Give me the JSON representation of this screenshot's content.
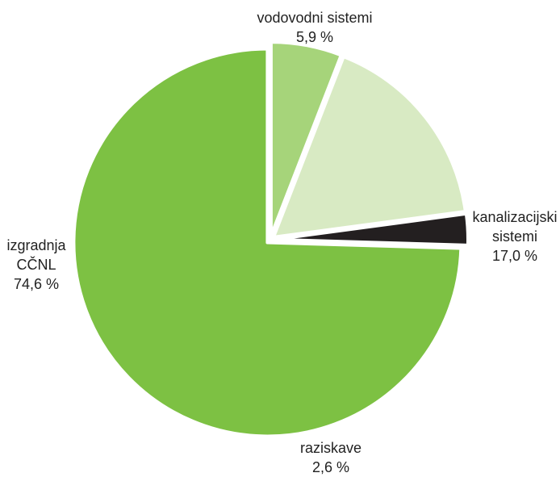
{
  "chart_data": {
    "type": "pie",
    "start": "top",
    "direction": "clockwise",
    "legend": "none",
    "slices": [
      {
        "label_lines": [
          "vodovodni sistemi"
        ],
        "value_text": "5,9 %",
        "value": 5.9,
        "color": "#a6d47a"
      },
      {
        "label_lines": [
          "kanalizacijski",
          "sistemi"
        ],
        "value_text": "17,0 %",
        "value": 17.0,
        "color": "#d8eac3"
      },
      {
        "label_lines": [
          "raziskave"
        ],
        "value_text": "2,6 %",
        "value": 2.6,
        "color": "#231f20"
      },
      {
        "label_lines": [
          "izgradnja",
          "CČNL"
        ],
        "value_text": "74,6 %",
        "value": 74.6,
        "color": "#7dc143"
      }
    ]
  }
}
